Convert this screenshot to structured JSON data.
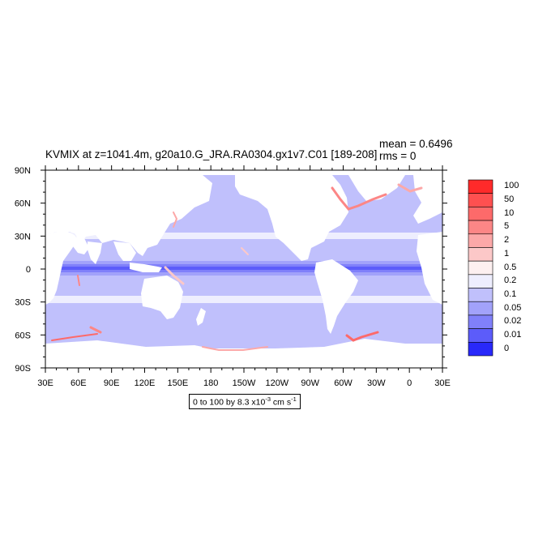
{
  "plot": {
    "title": "KVMIX at z=1041.4m, g20a10.G_JRA.RA0304.gx1v7.C01 [189-208]",
    "mean_text": "mean = 0.6496",
    "rms_text": "rms = 0",
    "units": {
      "prefix": "0 to 100 by 8.3 x10",
      "exponent": "-3",
      "middle": " cm s",
      "exponent2": "-1"
    }
  },
  "axes": {
    "x_ticks": [
      "30E",
      "60E",
      "90E",
      "120E",
      "150E",
      "180",
      "150W",
      "120W",
      "90W",
      "60W",
      "30W",
      "0",
      "30E"
    ],
    "y_ticks": [
      "90N",
      "60N",
      "30N",
      "0",
      "30S",
      "60S",
      "90S"
    ]
  },
  "colorbar": {
    "levels": [
      "100",
      "50",
      "10",
      "5",
      "2",
      "1",
      "0.5",
      "0.2",
      "0.1",
      "0.05",
      "0.02",
      "0.01",
      "0"
    ],
    "colors": [
      "#ff2a2a",
      "#fe5050",
      "#fd6a6a",
      "#fc8686",
      "#fca8a8",
      "#fcc8c8",
      "#fdf0f0",
      "#eeeefe",
      "#c0c0fc",
      "#a2a2fa",
      "#8080fa",
      "#5c5cfa",
      "#2828fa"
    ]
  },
  "chart_data": {
    "type": "heatmap",
    "title": "KVMIX at z=1041.4m, g20a10.G_JRA.RA0304.gx1v7.C01 [189-208]",
    "xlim": [
      30,
      390
    ],
    "ylim": [
      -90,
      90
    ],
    "mean": 0.6496,
    "rms": 0,
    "contour_levels": [
      0,
      0.01,
      0.02,
      0.05,
      0.1,
      0.2,
      0.5,
      1,
      2,
      5,
      10,
      50,
      100
    ],
    "dominant_value_range": [
      0.1,
      0.2
    ],
    "features": [
      {
        "region": "equatorial band",
        "lat": [
          -5,
          5
        ],
        "value_range": [
          0.01,
          0.05
        ]
      },
      {
        "region": "subtropical bands",
        "lat": [
          25,
          30
        ],
        "value_range": [
          0.2,
          0.5
        ]
      },
      {
        "region": "subtropical bands",
        "lat": [
          -30,
          -25
        ],
        "value_range": [
          0.2,
          0.5
        ]
      },
      {
        "region": "continental margins",
        "value_range": [
          1,
          100
        ]
      }
    ]
  }
}
